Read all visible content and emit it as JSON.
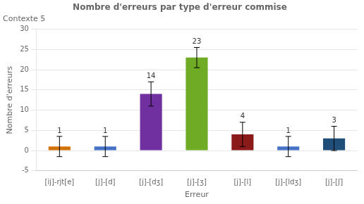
{
  "chart_data": {
    "type": "bar",
    "title": "Nombre d'erreurs par type d'erreur commise",
    "subtitle": "Contexte 5",
    "xlabel": "Erreur",
    "ylabel": "Nombre d'erreurs",
    "categories": [
      "[ij]-rjt[e]",
      "[j]-[d]",
      "[j]-[dʒ]",
      "[j]-[ʒ]",
      "[j]-[l]",
      "[j]-[ldʒ]",
      "[j]-[ʃ]"
    ],
    "values": [
      1,
      1,
      14,
      23,
      4,
      1,
      3
    ],
    "errors": [
      2.5,
      2.5,
      3.0,
      2.5,
      3.0,
      2.5,
      3.0
    ],
    "colors": [
      "#D4720A",
      "#4472C4",
      "#7030A0",
      "#6FAB24",
      "#8B1A1A",
      "#4472C4",
      "#1F4E79"
    ],
    "ylim": [
      -5,
      30
    ],
    "yticks": [
      -5,
      0,
      5,
      10,
      15,
      20,
      25,
      30
    ],
    "grid": true,
    "data_labels": true
  }
}
